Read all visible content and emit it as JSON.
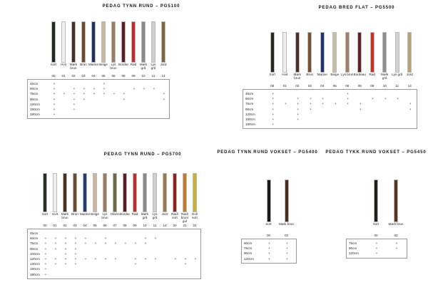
{
  "sections": [
    {
      "title": "PEDAG TYNN RUND – PG5100",
      "columns": [
        {
          "name": "Sort",
          "code": "00",
          "swatch": "#1d2a1f"
        },
        {
          "name": "Hvit",
          "code": "01",
          "swatch": "#f2f2f0"
        },
        {
          "name": "Mørk brun",
          "code": "02",
          "swatch": "#4a2e22"
        },
        {
          "name": "Brun",
          "code": "03",
          "swatch": "#6e4a2c"
        },
        {
          "name": "Marine",
          "code": "04",
          "swatch": "#1e2f63"
        },
        {
          "name": "Beige",
          "code": "05",
          "swatch": "#c9b79c"
        },
        {
          "name": "Lys brun",
          "code": "06",
          "swatch": "#9a7a60"
        },
        {
          "name": "Bordeaux",
          "code": "08",
          "swatch": "#5a1e24"
        },
        {
          "name": "Rød",
          "code": "09",
          "swatch": "#c42a2a"
        },
        {
          "name": "Mørk grå",
          "code": "10",
          "swatch": "#8a8a8a"
        },
        {
          "name": "Lys grå",
          "code": "11",
          "swatch": "#cfcfcf"
        },
        {
          "name": "Jord",
          "code": "14",
          "swatch": "#7a6a3a"
        }
      ],
      "rows": [
        {
          "size": "45cm",
          "marks": [
            "+",
            null,
            null,
            null,
            null,
            "+",
            null,
            null,
            null,
            null,
            null,
            null
          ]
        },
        {
          "size": "60cm",
          "marks": [
            "+",
            null,
            "+",
            "+",
            "+",
            "+",
            null,
            null,
            "+",
            "+",
            "+",
            null
          ]
        },
        {
          "size": "75cm",
          "marks": [
            "+",
            "+",
            "+",
            "+",
            "+",
            "+",
            "+",
            "+",
            null,
            null,
            null,
            "+"
          ]
        },
        {
          "size": "90cm",
          "marks": [
            "+",
            null,
            "+",
            "+",
            null,
            null,
            null,
            "+",
            null,
            null,
            null,
            "+"
          ]
        },
        {
          "size": "120cm",
          "marks": [
            "+",
            null,
            "+",
            null,
            null,
            null,
            null,
            null,
            null,
            null,
            null,
            null
          ]
        },
        {
          "size": "150cm",
          "marks": [
            "+",
            null,
            "+",
            null,
            null,
            null,
            null,
            null,
            null,
            null,
            null,
            null
          ]
        },
        {
          "size": "180cm",
          "marks": [
            "+",
            null,
            null,
            null,
            null,
            null,
            null,
            null,
            null,
            null,
            null,
            null
          ]
        }
      ]
    },
    {
      "title": "PEDAG BRED FLAT – PG5500",
      "columns": [
        {
          "name": "Sort",
          "code": "00",
          "swatch": "#2a2620"
        },
        {
          "name": "Hvit",
          "code": "01",
          "swatch": "#f0f0ee"
        },
        {
          "name": "Mørk brun",
          "code": "02",
          "swatch": "#4e3024"
        },
        {
          "name": "Brun",
          "code": "03",
          "swatch": "#7a4e30"
        },
        {
          "name": "Marine",
          "code": "04",
          "swatch": "#1e3270"
        },
        {
          "name": "Beige",
          "code": "05",
          "swatch": "#cdbda4"
        },
        {
          "name": "Lys brun",
          "code": "06",
          "swatch": "#a08068"
        },
        {
          "name": "Bordeaux",
          "code": "08",
          "swatch": "#5e2228"
        },
        {
          "name": "Rød",
          "code": "09",
          "swatch": "#c8302c"
        },
        {
          "name": "Mørk grå",
          "code": "10",
          "swatch": "#8e8e8e"
        },
        {
          "name": "Lys grå",
          "code": "11",
          "swatch": "#d2d2d2"
        },
        {
          "name": "Jord",
          "code": "14",
          "swatch": "#b8a27a"
        }
      ],
      "rows": [
        {
          "size": "45cm",
          "marks": [
            "+",
            null,
            null,
            null,
            null,
            null,
            "+",
            null,
            null,
            null,
            null,
            null
          ]
        },
        {
          "size": "60cm",
          "marks": [
            "+",
            null,
            "+",
            "+",
            "+",
            null,
            "+",
            null,
            "+",
            "+",
            "+",
            null
          ]
        },
        {
          "size": "75cm",
          "marks": [
            "+",
            "+",
            "+",
            "+",
            "+",
            "+",
            "+",
            "+",
            null,
            null,
            null,
            "+"
          ]
        },
        {
          "size": "90cm",
          "marks": [
            "+",
            null,
            "+",
            "+",
            null,
            null,
            null,
            "+",
            null,
            null,
            null,
            "+"
          ]
        },
        {
          "size": "120cm",
          "marks": [
            "+",
            null,
            "+",
            null,
            null,
            null,
            null,
            null,
            null,
            null,
            null,
            null
          ]
        },
        {
          "size": "150cm",
          "marks": [
            "+",
            null,
            "+",
            null,
            null,
            null,
            null,
            null,
            null,
            null,
            null,
            null
          ]
        },
        {
          "size": "180cm",
          "marks": [
            "+",
            null,
            null,
            null,
            null,
            null,
            null,
            null,
            null,
            null,
            null,
            null
          ]
        }
      ]
    },
    {
      "title": "PEDAG TYNN RUND – PG5700",
      "columns": [
        {
          "name": "Sort",
          "code": "00",
          "swatch": "#26301e"
        },
        {
          "name": "Hvit",
          "code": "01",
          "swatch": "#efefed"
        },
        {
          "name": "Mørk brun",
          "code": "02",
          "swatch": "#4a2e22"
        },
        {
          "name": "Brun",
          "code": "03",
          "swatch": "#6e4a2c"
        },
        {
          "name": "Marine",
          "code": "04",
          "swatch": "#233a78"
        },
        {
          "name": "Beige",
          "code": "05",
          "swatch": "#c9b79c"
        },
        {
          "name": "Lys brun",
          "code": "06",
          "swatch": "#9a7a60"
        },
        {
          "name": "Oliven",
          "code": "07",
          "swatch": "#6b6a3c"
        },
        {
          "name": "Bordeaux",
          "code": "08",
          "swatch": "#5a1e24"
        },
        {
          "name": "Rød",
          "code": "09",
          "swatch": "#c42a2a"
        },
        {
          "name": "Mørk grå",
          "code": "10",
          "swatch": "#8a8a8a"
        },
        {
          "name": "Lys grå",
          "code": "11",
          "swatch": "#cfcfcf"
        },
        {
          "name": "Jord",
          "code": "14",
          "swatch": "#9a7a4a"
        },
        {
          "name": "Rød/ sort",
          "code": "20",
          "swatch": "#8e2222"
        },
        {
          "name": "Rød/ brun/ gul",
          "code": "21",
          "swatch": "#c8782a"
        },
        {
          "name": "Gul/ sort",
          "code": "22",
          "swatch": "#c8b030"
        }
      ],
      "rows": [
        {
          "size": "45cm",
          "marks": [
            null,
            null,
            null,
            null,
            null,
            null,
            null,
            null,
            null,
            null,
            null,
            null,
            null,
            null,
            null,
            null
          ]
        },
        {
          "size": "60cm",
          "marks": [
            "+",
            "+",
            "+",
            "+",
            "+",
            null,
            "+",
            null,
            null,
            null,
            "+",
            "+",
            null,
            null,
            null,
            null
          ]
        },
        {
          "size": "75cm",
          "marks": [
            "+",
            "+",
            "+",
            "+",
            "+",
            "+",
            "+",
            "+",
            "+",
            "+",
            "+",
            null,
            null,
            null,
            null,
            null
          ]
        },
        {
          "size": "90cm",
          "marks": [
            "+",
            "+",
            "+",
            "+",
            null,
            null,
            null,
            null,
            null,
            null,
            null,
            null,
            null,
            null,
            null,
            null
          ]
        },
        {
          "size": "100cm",
          "marks": [
            "+",
            null,
            "+",
            "+",
            null,
            null,
            null,
            null,
            null,
            null,
            null,
            null,
            null,
            null,
            null,
            null
          ]
        },
        {
          "size": "120cm",
          "marks": [
            "+",
            "+",
            "+",
            "+",
            "+",
            "+",
            "+",
            "+",
            null,
            "+",
            "+",
            "+",
            null,
            "+",
            "+",
            "+"
          ]
        },
        {
          "size": "130cm",
          "marks": [
            "+",
            "+",
            "+",
            "+",
            null,
            null,
            null,
            null,
            null,
            "+",
            null,
            null,
            null,
            null,
            "+",
            null
          ]
        },
        {
          "size": "150cm",
          "marks": [
            "+",
            null,
            null,
            null,
            null,
            null,
            null,
            null,
            null,
            null,
            null,
            null,
            null,
            null,
            null,
            null
          ]
        },
        {
          "size": "180cm",
          "marks": [
            "+",
            null,
            null,
            null,
            null,
            null,
            null,
            null,
            null,
            null,
            null,
            null,
            null,
            null,
            null,
            null
          ]
        }
      ]
    },
    {
      "title": "PEDAG TYNN RUND VOKSET – PG5400",
      "columns": [
        {
          "name": "Sort",
          "code": "00",
          "swatch": "#1a1a1a"
        },
        {
          "name": "Mørk brun",
          "code": "02",
          "swatch": "#4a2c20"
        }
      ],
      "rows": [
        {
          "size": "60cm",
          "marks": [
            "+",
            "+"
          ]
        },
        {
          "size": "75cm",
          "marks": [
            "+",
            "+"
          ]
        },
        {
          "size": "90cm",
          "marks": [
            "+",
            "+"
          ]
        },
        {
          "size": "120cm",
          "marks": [
            "+",
            "+"
          ]
        }
      ]
    },
    {
      "title": "PEDAG TYKK RUND VOKSET – PG5450",
      "columns": [
        {
          "name": "Sort",
          "code": "00",
          "swatch": "#1c2218"
        },
        {
          "name": "Mørk brun",
          "code": "02",
          "swatch": "#5a3422"
        }
      ],
      "rows": [
        {
          "size": "75cm",
          "marks": [
            "+",
            "+"
          ]
        },
        {
          "size": "90cm",
          "marks": [
            "+",
            "+"
          ]
        },
        {
          "size": "120cm",
          "marks": [
            "+",
            null
          ]
        }
      ]
    }
  ]
}
